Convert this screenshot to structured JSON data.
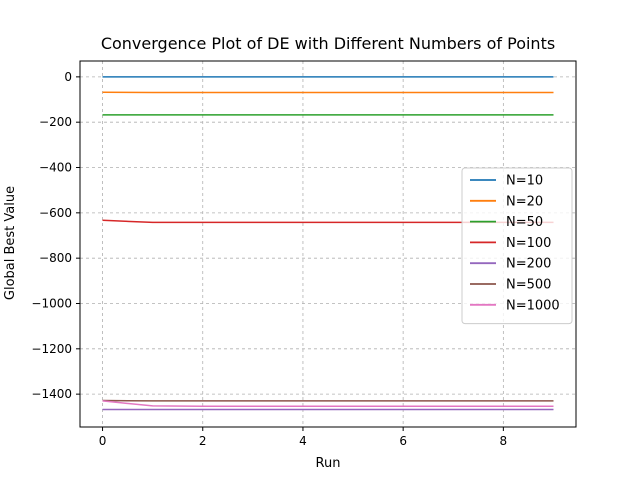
{
  "chart_data": {
    "type": "line",
    "title": "Convergence Plot of DE with Different Numbers of Points",
    "xlabel": "Run",
    "ylabel": "Global Best Value",
    "x": [
      0,
      1,
      2,
      3,
      4,
      5,
      6,
      7,
      8,
      9
    ],
    "xlim": [
      -0.45,
      9.45
    ],
    "ylim": [
      -1545,
      70
    ],
    "xticks": [
      0,
      2,
      4,
      6,
      8
    ],
    "yticks": [
      0,
      -200,
      -400,
      -600,
      -800,
      -1000,
      -1200,
      -1400
    ],
    "grid": true,
    "legend_position": "center-right",
    "series": [
      {
        "name": "N=10",
        "color": "#1f77b4",
        "values": [
          0,
          0,
          0,
          0,
          0,
          0,
          0,
          0,
          0,
          0
        ]
      },
      {
        "name": "N=20",
        "color": "#ff7f0e",
        "values": [
          -68,
          -69,
          -69,
          -69,
          -69,
          -69,
          -69,
          -69,
          -69,
          -69
        ]
      },
      {
        "name": "N=50",
        "color": "#2ca02c",
        "values": [
          -168,
          -168,
          -168,
          -168,
          -168,
          -168,
          -168,
          -168,
          -168,
          -168
        ]
      },
      {
        "name": "N=100",
        "color": "#d62728",
        "values": [
          -633,
          -642,
          -642,
          -642,
          -642,
          -642,
          -642,
          -642,
          -642,
          -642
        ]
      },
      {
        "name": "N=200",
        "color": "#9467bd",
        "values": [
          -1468,
          -1468,
          -1468,
          -1468,
          -1468,
          -1468,
          -1468,
          -1468,
          -1468,
          -1468
        ]
      },
      {
        "name": "N=500",
        "color": "#8c564b",
        "values": [
          -1428,
          -1430,
          -1430,
          -1430,
          -1430,
          -1430,
          -1430,
          -1430,
          -1430,
          -1430
        ]
      },
      {
        "name": "N=1000",
        "color": "#e377c2",
        "values": [
          -1430,
          -1452,
          -1453,
          -1453,
          -1453,
          -1453,
          -1453,
          -1453,
          -1453,
          -1453
        ]
      }
    ]
  }
}
